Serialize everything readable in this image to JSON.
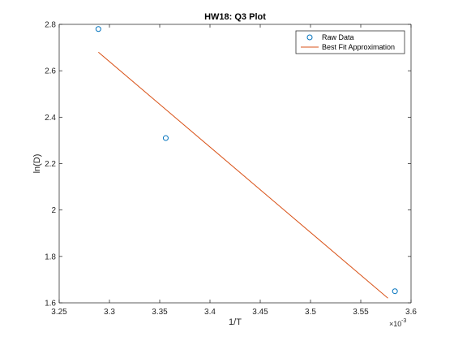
{
  "chart_data": {
    "type": "scatter",
    "title": "HW18: Q3 Plot",
    "xlabel": "1/T",
    "ylabel": "ln(D)",
    "x_exponent_base": "×10",
    "x_exponent_power": "-3",
    "xlim": [
      3.25,
      3.6
    ],
    "ylim": [
      1.6,
      2.8
    ],
    "x_ticks": [
      3.25,
      3.3,
      3.35,
      3.4,
      3.45,
      3.5,
      3.55,
      3.6
    ],
    "x_tick_labels": [
      "3.25",
      "3.3",
      "3.35",
      "3.4",
      "3.45",
      "3.5",
      "3.55",
      "3.6"
    ],
    "y_ticks": [
      1.6,
      1.8,
      2.0,
      2.2,
      2.4,
      2.6,
      2.8
    ],
    "y_tick_labels": [
      "1.6",
      "1.8",
      "2",
      "2.2",
      "2.4",
      "2.6",
      "2.8"
    ],
    "grid": false,
    "legend_position": "top-right",
    "series": [
      {
        "name": "Raw Data",
        "kind": "markers",
        "color": "#0072bd",
        "x": [
          3.289,
          3.356,
          3.584
        ],
        "y": [
          2.78,
          2.31,
          1.65
        ]
      },
      {
        "name": "Best Fit Approximation",
        "kind": "line",
        "color": "#d95319",
        "x": [
          3.289,
          3.577
        ],
        "y": [
          2.68,
          1.62
        ]
      }
    ]
  }
}
